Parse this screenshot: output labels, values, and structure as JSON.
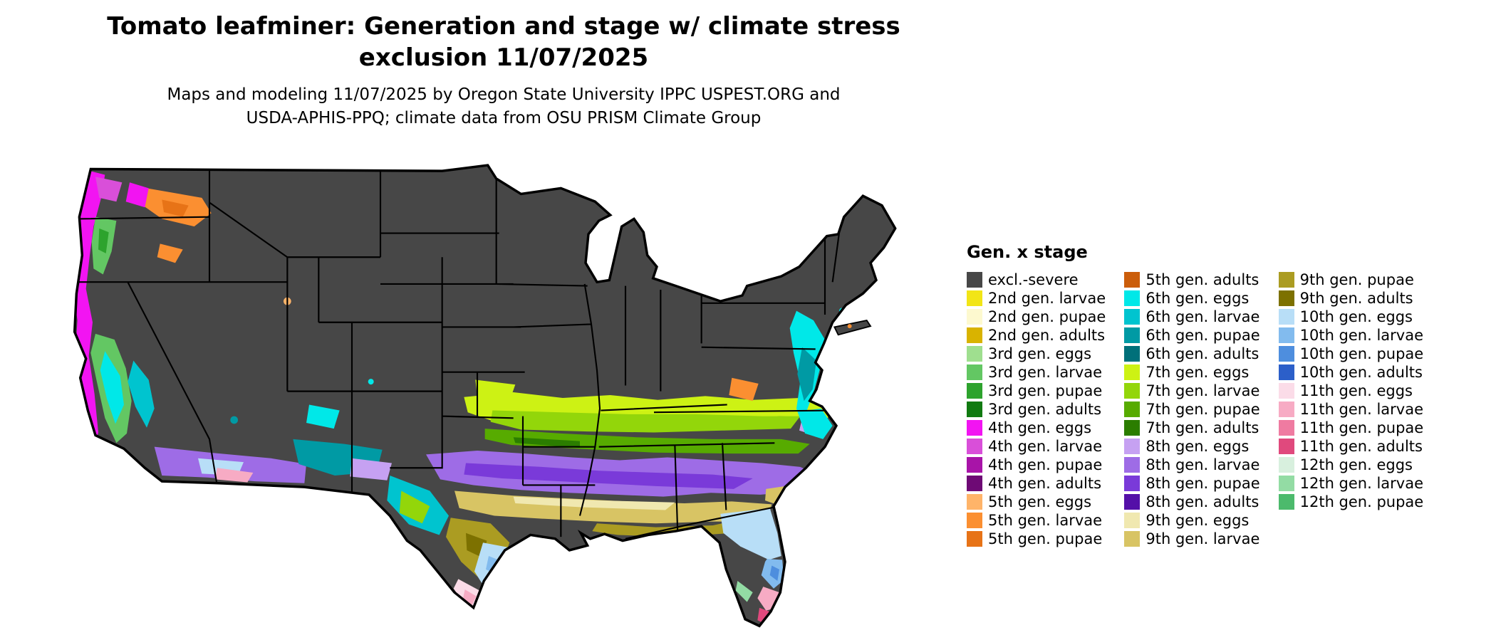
{
  "title": {
    "line1": "Tomato leafminer: Generation and stage w/ climate stress",
    "line2": "exclusion 11/07/2025"
  },
  "subtitle": {
    "line1": "Maps and modeling 11/07/2025 by Oregon State University IPPC USPEST.ORG and",
    "line2": "USDA-APHIS-PPQ; climate data from OSU PRISM Climate Group"
  },
  "legend": {
    "title": "Gen. x stage",
    "columns": [
      {
        "entries": [
          {
            "label": "excl.-severe",
            "color": "excl_severe"
          },
          {
            "label": "2nd gen. larvae",
            "color": "g2_larvae"
          },
          {
            "label": "2nd gen. pupae",
            "color": "g2_pupae"
          },
          {
            "label": "2nd gen. adults",
            "color": "g2_adults"
          },
          {
            "label": "3rd gen. eggs",
            "color": "g3_eggs"
          },
          {
            "label": "3rd gen. larvae",
            "color": "g3_larvae"
          },
          {
            "label": "3rd gen. pupae",
            "color": "g3_pupae"
          },
          {
            "label": "3rd gen. adults",
            "color": "g3_adults"
          },
          {
            "label": "4th gen. eggs",
            "color": "g4_eggs"
          },
          {
            "label": "4th gen. larvae",
            "color": "g4_larvae"
          },
          {
            "label": "4th gen. pupae",
            "color": "g4_pupae"
          },
          {
            "label": "4th gen. adults",
            "color": "g4_adults"
          },
          {
            "label": "5th gen. eggs",
            "color": "g5_eggs"
          },
          {
            "label": "5th gen. larvae",
            "color": "g5_larvae"
          },
          {
            "label": "5th gen. pupae",
            "color": "g5_pupae"
          }
        ]
      },
      {
        "entries": [
          {
            "label": "5th gen. adults",
            "color": "g5_adults"
          },
          {
            "label": "6th gen. eggs",
            "color": "g6_eggs"
          },
          {
            "label": "6th gen. larvae",
            "color": "g6_larvae"
          },
          {
            "label": "6th gen. pupae",
            "color": "g6_pupae"
          },
          {
            "label": "6th gen. adults",
            "color": "g6_adults"
          },
          {
            "label": "7th gen. eggs",
            "color": "g7_eggs"
          },
          {
            "label": "7th gen. larvae",
            "color": "g7_larvae"
          },
          {
            "label": "7th gen. pupae",
            "color": "g7_pupae"
          },
          {
            "label": "7th gen. adults",
            "color": "g7_adults"
          },
          {
            "label": "8th gen. eggs",
            "color": "g8_eggs"
          },
          {
            "label": "8th gen. larvae",
            "color": "g8_larvae"
          },
          {
            "label": "8th gen. pupae",
            "color": "g8_pupae"
          },
          {
            "label": "8th gen. adults",
            "color": "g8_adults"
          },
          {
            "label": "9th gen. eggs",
            "color": "g9_eggs"
          },
          {
            "label": "9th gen. larvae",
            "color": "g9_larvae"
          }
        ]
      },
      {
        "entries": [
          {
            "label": "9th gen. pupae",
            "color": "g9_pupae"
          },
          {
            "label": "9th gen. adults",
            "color": "g9_adults"
          },
          {
            "label": "10th gen. eggs",
            "color": "g10_eggs"
          },
          {
            "label": "10th gen. larvae",
            "color": "g10_larvae"
          },
          {
            "label": "10th gen. pupae",
            "color": "g10_pupae"
          },
          {
            "label": "10th gen. adults",
            "color": "g10_adults"
          },
          {
            "label": "11th gen. eggs",
            "color": "g11_eggs"
          },
          {
            "label": "11th gen. larvae",
            "color": "g11_larvae"
          },
          {
            "label": "11th gen. pupae",
            "color": "g11_pupae"
          },
          {
            "label": "11th gen. adults",
            "color": "g11_adults"
          },
          {
            "label": "12th gen. eggs",
            "color": "g12_eggs"
          },
          {
            "label": "12th gen. larvae",
            "color": "g12_larvae"
          },
          {
            "label": "12th gen. pupae",
            "color": "g12_pupae"
          }
        ]
      }
    ]
  },
  "colors": {
    "excl_severe": "#474747",
    "g2_larvae": "#f2e516",
    "g2_pupae": "#fdf9cf",
    "g2_adults": "#d9b300",
    "g3_eggs": "#9fdf8f",
    "g3_larvae": "#63c763",
    "g3_pupae": "#2da32d",
    "g3_adults": "#117a11",
    "g4_eggs": "#f214f2",
    "g4_larvae": "#d94fd9",
    "g4_pupae": "#a814a8",
    "g4_adults": "#6e0a75",
    "g5_eggs": "#ffb469",
    "g5_larvae": "#fb8f31",
    "g5_pupae": "#e77317",
    "g5_adults": "#cb5d0a",
    "g6_eggs": "#00e8e8",
    "g6_larvae": "#00c4cf",
    "g6_pupae": "#009aa4",
    "g6_adults": "#00707a",
    "g7_eggs": "#cdf214",
    "g7_larvae": "#93d60a",
    "g7_pupae": "#57ab00",
    "g7_adults": "#2b7d00",
    "g8_eggs": "#c6a1f2",
    "g8_larvae": "#9e6ce6",
    "g8_pupae": "#7a3ad9",
    "g8_adults": "#5410a8",
    "g9_eggs": "#f0e8b0",
    "g9_larvae": "#d8c464",
    "g9_pupae": "#ab9c22",
    "g9_adults": "#7d7100",
    "g10_eggs": "#b8def7",
    "g10_larvae": "#82bbee",
    "g10_pupae": "#4e8ede",
    "g10_adults": "#2c5fc9",
    "g11_eggs": "#fbdce8",
    "g11_larvae": "#f7abc4",
    "g11_pupae": "#ef7ba1",
    "g11_adults": "#e0497d",
    "g12_eggs": "#d8f0de",
    "g12_larvae": "#93dca4",
    "g12_pupae": "#4cba6c"
  }
}
